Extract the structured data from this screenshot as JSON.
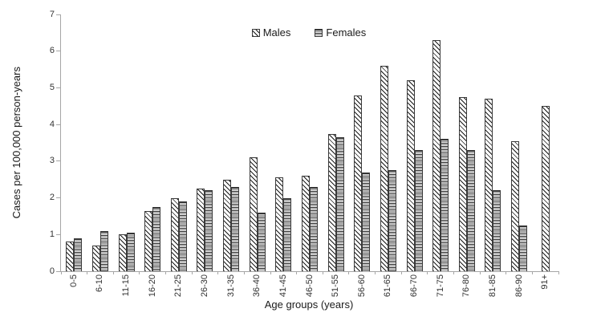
{
  "chart_data": {
    "type": "bar",
    "title": "",
    "xlabel": "Age groups (years)",
    "ylabel": "Cases per 100,000 person-years",
    "ylim": [
      0,
      7
    ],
    "yticks": [
      0,
      1,
      2,
      3,
      4,
      5,
      6,
      7
    ],
    "grid": false,
    "legend_position": "top-center",
    "categories": [
      "0-5",
      "6-10",
      "11-15",
      "16-20",
      "21-25",
      "26-30",
      "31-35",
      "36-40",
      "41-45",
      "46-50",
      "51-55",
      "56-60",
      "61-65",
      "66-70",
      "71-75",
      "76-80",
      "81-85",
      "86-90",
      "91+"
    ],
    "series": [
      {
        "name": "Males",
        "pattern": "diagonal-hatch",
        "values": [
          0.8,
          0.7,
          1.0,
          1.65,
          2.0,
          2.25,
          2.5,
          3.1,
          2.55,
          2.6,
          3.75,
          4.8,
          5.6,
          5.2,
          6.3,
          4.75,
          4.7,
          3.55,
          4.5
        ]
      },
      {
        "name": "Females",
        "pattern": "horizontal-lines",
        "values": [
          0.9,
          1.1,
          1.05,
          1.75,
          1.9,
          2.2,
          2.3,
          1.6,
          2.0,
          2.3,
          3.65,
          2.7,
          2.75,
          3.3,
          3.6,
          3.3,
          2.2,
          1.25,
          0
        ]
      }
    ]
  },
  "colors": {
    "background": "#ffffff",
    "axis_line": "#a6a6a6",
    "tick_text": "#333333",
    "bar_border": "#3a3a3a",
    "pattern_dark": "#1a1a1a"
  }
}
